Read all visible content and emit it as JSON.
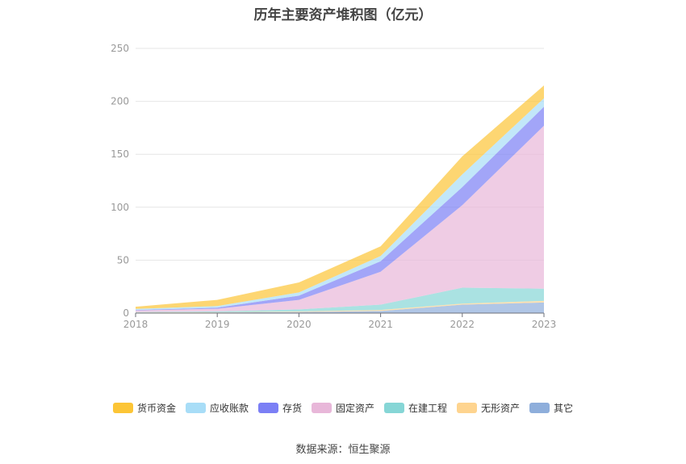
{
  "title": "历年主要资产堆积图（亿元）",
  "source": "数据来源：恒生聚源",
  "chart_data": {
    "type": "area",
    "stacked": true,
    "x": [
      "2018",
      "2019",
      "2020",
      "2021",
      "2022",
      "2023"
    ],
    "ylim": [
      0,
      250
    ],
    "yticks": [
      0,
      50,
      100,
      150,
      200,
      250
    ],
    "grid": true,
    "legend_position": "bottom",
    "series": [
      {
        "name": "其它",
        "color": "#8eaedb",
        "values": [
          0.3,
          0.5,
          1.0,
          2.0,
          8.0,
          10.0
        ]
      },
      {
        "name": "无形资产",
        "color": "#fed48f",
        "values": [
          0.2,
          0.3,
          0.5,
          1.0,
          1.0,
          1.5
        ]
      },
      {
        "name": "在建工程",
        "color": "#86d6d6",
        "values": [
          0.5,
          0.8,
          2.0,
          5.0,
          15.0,
          11.5
        ]
      },
      {
        "name": "固定资产",
        "color": "#e8b7d9",
        "values": [
          1.5,
          2.5,
          9.0,
          31.0,
          78.0,
          154.0
        ]
      },
      {
        "name": "存货",
        "color": "#7b7ff5",
        "values": [
          0.5,
          1.0,
          4.0,
          10.0,
          17.0,
          18.0
        ]
      },
      {
        "name": "应收账款",
        "color": "#a8ddf7",
        "values": [
          1.0,
          1.5,
          3.0,
          5.0,
          12.0,
          8.0
        ]
      },
      {
        "name": "货币资金",
        "color": "#fcc536",
        "values": [
          2.0,
          5.9,
          9.5,
          9.0,
          17.0,
          12.0
        ]
      }
    ],
    "legend_order": [
      "货币资金",
      "应收账款",
      "存货",
      "固定资产",
      "在建工程",
      "无形资产",
      "其它"
    ]
  }
}
